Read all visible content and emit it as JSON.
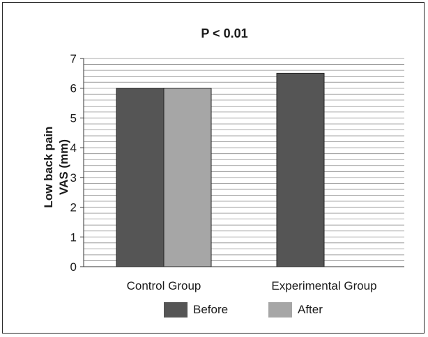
{
  "chart_data": {
    "type": "bar",
    "title": "P < 0.01",
    "ylabel_lines": [
      "Low back pain",
      "VAS (mm)"
    ],
    "ylim": [
      0,
      7
    ],
    "yticks": [
      "0",
      "1",
      "2",
      "3",
      "4",
      "5",
      "6",
      "7"
    ],
    "categories": [
      "Control Group",
      "Experimental Group"
    ],
    "series": [
      {
        "name": "Before",
        "values": [
          6.0,
          6.5
        ],
        "color": "#555555"
      },
      {
        "name": "After",
        "values": [
          6.0,
          0
        ],
        "color": "#a6a6a6"
      }
    ],
    "grid": true,
    "legend_position": "bottom"
  }
}
